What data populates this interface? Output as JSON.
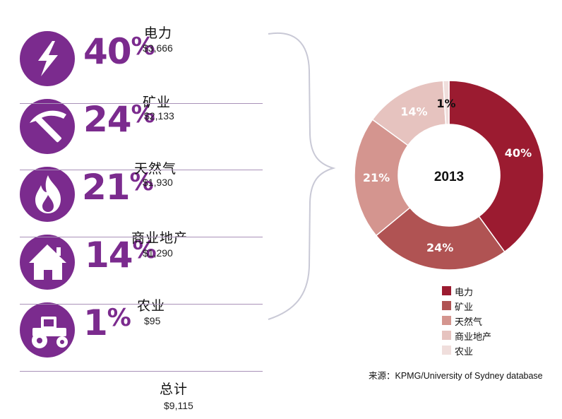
{
  "categories": [
    {
      "pct_num": "40",
      "pct_sym": "%",
      "name": "电力",
      "amount": "$3,666",
      "icon": "lightning-icon"
    },
    {
      "pct_num": "24",
      "pct_sym": "%",
      "name": "矿业",
      "amount": "$2,133",
      "icon": "pickaxe-icon"
    },
    {
      "pct_num": "21",
      "pct_sym": "%",
      "name": "天然气",
      "amount": "$1,930",
      "icon": "flame-icon"
    },
    {
      "pct_num": "14",
      "pct_sym": "%",
      "name": "商业地产",
      "amount": "$1,290",
      "icon": "house-icon"
    },
    {
      "pct_num": "1",
      "pct_sym": "%",
      "name": "农业",
      "amount": "$95",
      "icon": "tractor-icon"
    }
  ],
  "total": {
    "label": "总计",
    "value": "$9,115"
  },
  "source": "来源：KPMG/University of Sydney database",
  "colors": {
    "accent": "#7b2b8e",
    "divider": "#a991b8",
    "brace": "#c9c9d6"
  },
  "chart_data": {
    "type": "pie",
    "center_label": "2013",
    "categories": [
      "电力",
      "矿业",
      "天然气",
      "商业地产",
      "农业"
    ],
    "values": [
      40,
      24,
      21,
      14,
      1
    ],
    "data_labels": [
      "40%",
      "24%",
      "21%",
      "14%",
      "1%"
    ],
    "colors": [
      "#9b1b30",
      "#b05353",
      "#d4958f",
      "#e6c3bf",
      "#f0dedc"
    ],
    "legend_position": "bottom-right"
  }
}
